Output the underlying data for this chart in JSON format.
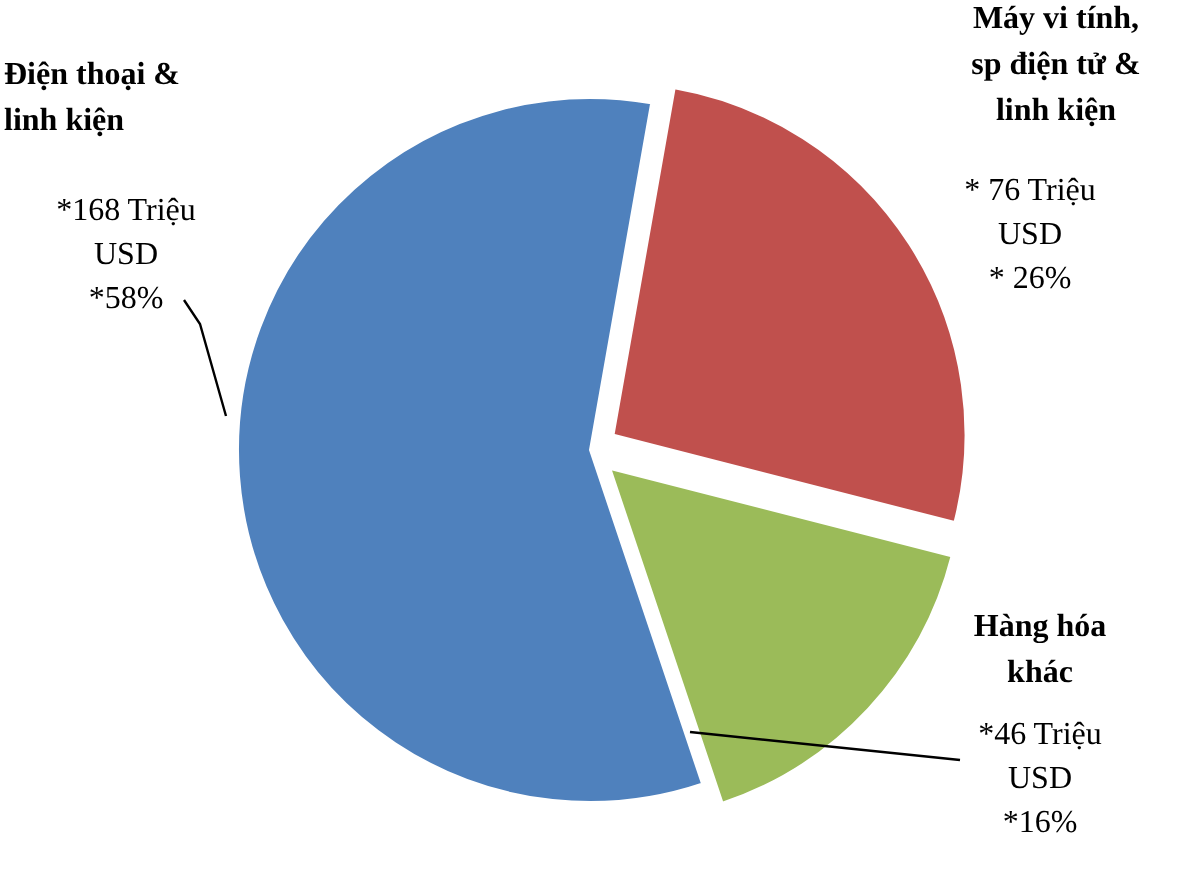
{
  "chart_data": {
    "type": "pie",
    "categories": [
      "Điện thoại &\nlinh kiện",
      "Máy vi tính,\nsp điện tử &\nlinh kiện",
      "Hàng hóa\nkhác"
    ],
    "values": [
      168,
      76,
      46
    ],
    "colors": [
      "#4f81bd",
      "#c0504d",
      "#9bbb59"
    ],
    "value_labels": [
      "*168 Triệu\nUSD\n*58%",
      "* 76 Triệu\nUSD\n* 26%",
      "*46 Triệu\nUSD\n*16%"
    ]
  }
}
